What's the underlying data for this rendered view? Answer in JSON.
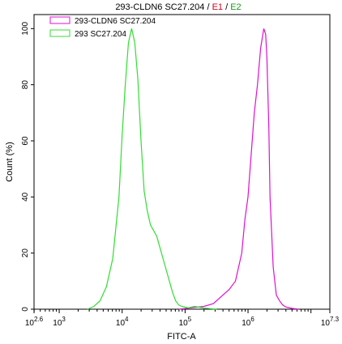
{
  "chart_data": {
    "type": "line",
    "title": {
      "main": "293-CLDN6 SC27.204",
      "sep1": " / ",
      "gate1": "E1",
      "sep2": " / ",
      "gate2": "E2",
      "gate1_color": "#d0021b",
      "gate2_color": "#1a9a1a"
    },
    "xlabel": "FITC-A",
    "ylabel": "Count (%)",
    "x_scale": "log10",
    "xlim": [
      2.6,
      7.3
    ],
    "ylim": [
      0,
      105
    ],
    "x_ticks": [
      {
        "exp": 2.6,
        "label": "2.6"
      },
      {
        "exp": 3,
        "label": "3"
      },
      {
        "exp": 4,
        "label": "4"
      },
      {
        "exp": 5,
        "label": "5"
      },
      {
        "exp": 6,
        "label": "6"
      },
      {
        "exp": 7.3,
        "label": "7.3"
      }
    ],
    "x_tick_base": "10",
    "y_ticks": [
      0,
      20,
      40,
      60,
      80,
      100
    ],
    "grid": false,
    "legend_position": "top-left",
    "series": [
      {
        "name": "293-CLDN6 SC27.204",
        "color": "#e010d0",
        "x": [
          4.9,
          5.1,
          5.3,
          5.45,
          5.55,
          5.7,
          5.8,
          5.85,
          5.9,
          5.95,
          6.0,
          6.05,
          6.1,
          6.15,
          6.2,
          6.25,
          6.28,
          6.3,
          6.33,
          6.35,
          6.4,
          6.45,
          6.5,
          6.55,
          6.6,
          6.7,
          6.8
        ],
        "values": [
          0,
          0.5,
          1,
          2,
          4,
          7,
          10,
          15,
          20,
          32,
          40,
          55,
          70,
          80,
          93,
          100,
          98,
          90,
          65,
          40,
          15,
          5,
          3,
          1.5,
          0.8,
          0.3,
          0
        ]
      },
      {
        "name": "293 SC27.204",
        "color": "#33dd33",
        "x": [
          3.45,
          3.55,
          3.65,
          3.75,
          3.85,
          3.95,
          4.0,
          4.05,
          4.1,
          4.15,
          4.2,
          4.25,
          4.3,
          4.35,
          4.4,
          4.45,
          4.5,
          4.55,
          4.6,
          4.65,
          4.7,
          4.75,
          4.8,
          4.85,
          4.9,
          4.95,
          5.05,
          5.15,
          5.3,
          5.5
        ],
        "values": [
          0,
          1,
          3,
          8,
          18,
          40,
          62,
          80,
          95,
          100,
          95,
          82,
          60,
          42,
          35,
          30,
          28,
          26,
          22,
          18,
          14,
          10,
          6,
          3,
          1.5,
          1,
          0.5,
          1,
          0.4,
          0
        ]
      }
    ]
  }
}
